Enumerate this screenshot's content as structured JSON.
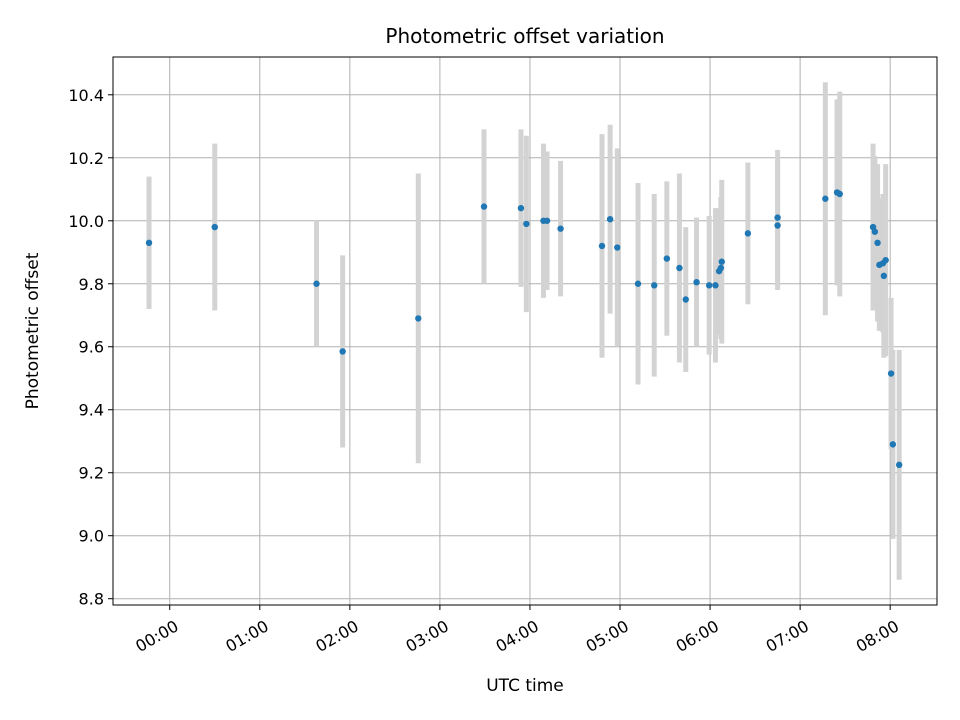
{
  "chart_data": {
    "type": "scatter",
    "title": "Photometric offset variation",
    "xlabel": "UTC time",
    "ylabel": "Photometric offset",
    "x_unit": "hours UTC",
    "xlim": [
      -0.63,
      8.52
    ],
    "ylim": [
      8.78,
      10.52
    ],
    "grid": true,
    "x_ticks": [
      {
        "value": 0,
        "label": "00:00"
      },
      {
        "value": 1,
        "label": "01:00"
      },
      {
        "value": 2,
        "label": "02:00"
      },
      {
        "value": 3,
        "label": "03:00"
      },
      {
        "value": 4,
        "label": "04:00"
      },
      {
        "value": 5,
        "label": "05:00"
      },
      {
        "value": 6,
        "label": "06:00"
      },
      {
        "value": 7,
        "label": "07:00"
      },
      {
        "value": 8,
        "label": "08:00"
      }
    ],
    "y_ticks": [
      {
        "value": 8.8,
        "label": "8.8"
      },
      {
        "value": 9.0,
        "label": "9.0"
      },
      {
        "value": 9.2,
        "label": "9.2"
      },
      {
        "value": 9.4,
        "label": "9.4"
      },
      {
        "value": 9.6,
        "label": "9.6"
      },
      {
        "value": 9.8,
        "label": "9.8"
      },
      {
        "value": 10.0,
        "label": "10.0"
      },
      {
        "value": 10.2,
        "label": "10.2"
      },
      {
        "value": 10.4,
        "label": "10.4"
      }
    ],
    "colors": {
      "points": "#1f77b4",
      "errorbars": "#d3d3d3"
    },
    "points": [
      {
        "x": -0.23,
        "y": 9.93,
        "err": 0.21
      },
      {
        "x": 0.5,
        "y": 9.98,
        "err": 0.265
      },
      {
        "x": 1.63,
        "y": 9.8,
        "err": 0.2
      },
      {
        "x": 1.92,
        "y": 9.585,
        "err": 0.305
      },
      {
        "x": 2.76,
        "y": 9.69,
        "err": 0.46
      },
      {
        "x": 3.49,
        "y": 10.045,
        "err": 0.245
      },
      {
        "x": 3.9,
        "y": 10.04,
        "err": 0.25
      },
      {
        "x": 3.96,
        "y": 9.99,
        "err": 0.28
      },
      {
        "x": 4.15,
        "y": 10.0,
        "err": 0.245
      },
      {
        "x": 4.19,
        "y": 10.0,
        "err": 0.22
      },
      {
        "x": 4.34,
        "y": 9.975,
        "err": 0.215
      },
      {
        "x": 4.8,
        "y": 9.92,
        "err": 0.355
      },
      {
        "x": 4.89,
        "y": 10.005,
        "err": 0.3
      },
      {
        "x": 4.97,
        "y": 9.915,
        "err": 0.315
      },
      {
        "x": 5.2,
        "y": 9.8,
        "err": 0.32
      },
      {
        "x": 5.38,
        "y": 9.795,
        "err": 0.29
      },
      {
        "x": 5.52,
        "y": 9.88,
        "err": 0.245
      },
      {
        "x": 5.66,
        "y": 9.85,
        "err": 0.3
      },
      {
        "x": 5.73,
        "y": 9.75,
        "err": 0.23
      },
      {
        "x": 5.85,
        "y": 9.805,
        "err": 0.205
      },
      {
        "x": 5.99,
        "y": 9.795,
        "err": 0.22
      },
      {
        "x": 6.06,
        "y": 9.795,
        "err": 0.245
      },
      {
        "x": 6.1,
        "y": 9.84,
        "err": 0.2
      },
      {
        "x": 6.12,
        "y": 9.85,
        "err": 0.225
      },
      {
        "x": 6.13,
        "y": 9.87,
        "err": 0.26
      },
      {
        "x": 6.42,
        "y": 9.96,
        "err": 0.225
      },
      {
        "x": 6.75,
        "y": 10.01,
        "err": 0.215
      },
      {
        "x": 6.75,
        "y": 9.985,
        "err": 0.205
      },
      {
        "x": 7.28,
        "y": 10.07,
        "err": 0.37
      },
      {
        "x": 7.41,
        "y": 10.09,
        "err": 0.295
      },
      {
        "x": 7.44,
        "y": 10.085,
        "err": 0.325
      },
      {
        "x": 7.81,
        "y": 9.98,
        "err": 0.265
      },
      {
        "x": 7.83,
        "y": 9.965,
        "err": 0.24
      },
      {
        "x": 7.86,
        "y": 9.93,
        "err": 0.25
      },
      {
        "x": 7.88,
        "y": 9.86,
        "err": 0.21
      },
      {
        "x": 7.92,
        "y": 9.865,
        "err": 0.22
      },
      {
        "x": 7.93,
        "y": 9.825,
        "err": 0.26
      },
      {
        "x": 7.95,
        "y": 9.875,
        "err": 0.305
      },
      {
        "x": 8.01,
        "y": 9.515,
        "err": 0.24
      },
      {
        "x": 8.03,
        "y": 9.29,
        "err": 0.3
      },
      {
        "x": 8.1,
        "y": 9.225,
        "err": 0.365
      }
    ]
  }
}
